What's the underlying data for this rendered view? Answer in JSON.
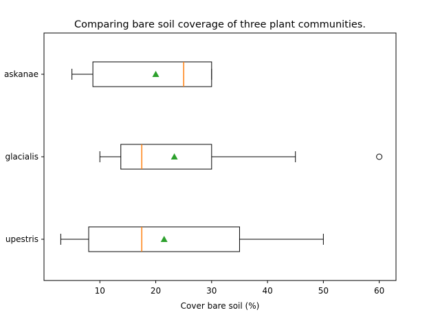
{
  "chart_data": {
    "type": "boxplot",
    "orientation": "horizontal",
    "title": "Comparing bare soil coverage of three plant communities.",
    "xlabel": "Cover bare soil (%)",
    "ylabel": "",
    "xlim": [
      0,
      63
    ],
    "xticks": [
      10,
      20,
      30,
      40,
      50,
      60
    ],
    "grid": false,
    "categories": [
      "Dryas alaskanae",
      "Dryas glacialis",
      "Rupestris"
    ],
    "category_labels_visible": [
      "askanae",
      "glacialis",
      "upestris"
    ],
    "boxes": [
      {
        "whisker_low": 5,
        "q1": 8.75,
        "median": 25,
        "q3": 30,
        "whisker_high": 30,
        "mean": 20,
        "outliers": []
      },
      {
        "whisker_low": 10,
        "q1": 13.75,
        "median": 17.5,
        "q3": 30,
        "whisker_high": 45,
        "mean": 23.33,
        "outliers": [
          60
        ]
      },
      {
        "whisker_low": 3,
        "q1": 8,
        "median": 17.5,
        "q3": 35,
        "whisker_high": 50,
        "mean": 21.5,
        "outliers": []
      }
    ],
    "colors": {
      "box": "#000000",
      "median": "#ff7f0e",
      "mean": "#2ca02c",
      "outlier": "#000000"
    }
  }
}
